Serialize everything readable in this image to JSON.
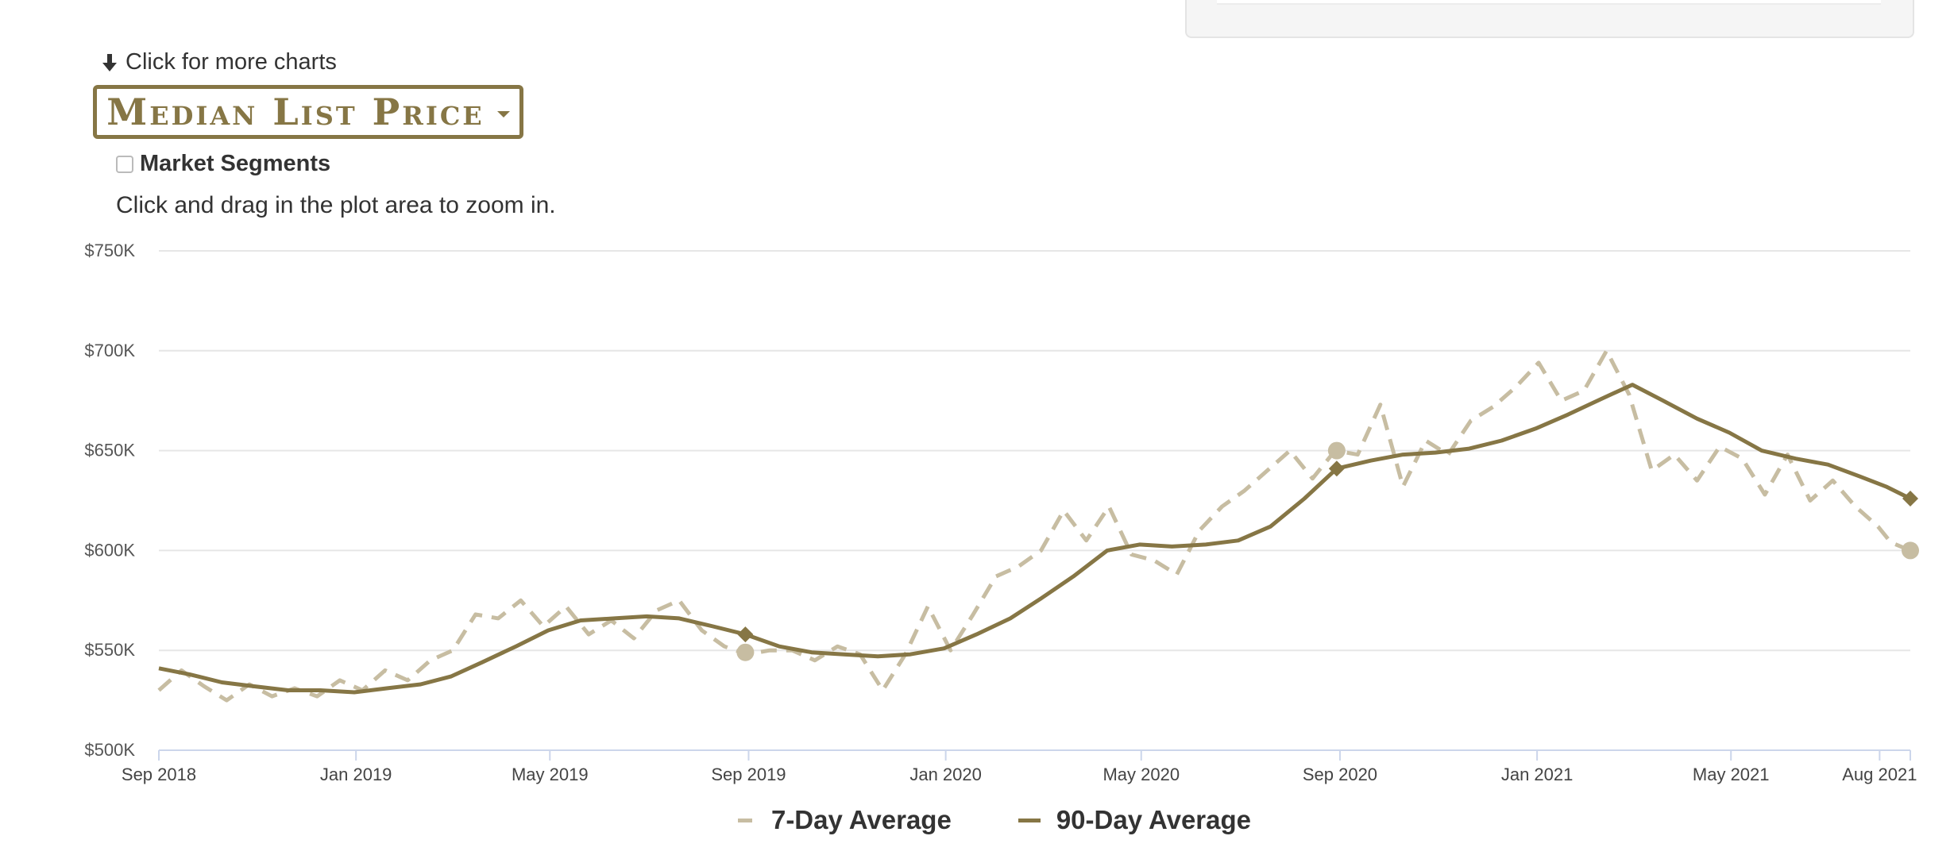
{
  "header": {
    "more_charts_label": "Click for more charts",
    "dropdown_label": "Median List Price",
    "segments_label": "Market Segments",
    "zoom_hint": "Click and drag in the plot area to zoom in."
  },
  "colors": {
    "accent": "#867645",
    "series_7day": "#c7bda2",
    "series_90day": "#867645",
    "grid": "#e6e6e6",
    "axis": "#ccd6eb",
    "text": "#333333"
  },
  "chart_data": {
    "type": "line",
    "title": "",
    "xlabel": "",
    "ylabel": "",
    "ylim": [
      500000,
      750000
    ],
    "xlim": [
      "2018-09-01",
      "2021-08-20"
    ],
    "y_ticks": [
      {
        "value": 500000,
        "label": "$500K"
      },
      {
        "value": 550000,
        "label": "$550K"
      },
      {
        "value": 600000,
        "label": "$600K"
      },
      {
        "value": 650000,
        "label": "$650K"
      },
      {
        "value": 700000,
        "label": "$700K"
      },
      {
        "value": 750000,
        "label": "$750K"
      }
    ],
    "x_ticks": [
      {
        "date": "2018-09-01",
        "label": "Sep 2018"
      },
      {
        "date": "2019-01-01",
        "label": "Jan 2019"
      },
      {
        "date": "2019-05-01",
        "label": "May 2019"
      },
      {
        "date": "2019-09-01",
        "label": "Sep 2019"
      },
      {
        "date": "2020-01-01",
        "label": "Jan 2020"
      },
      {
        "date": "2020-05-01",
        "label": "May 2020"
      },
      {
        "date": "2020-09-01",
        "label": "Sep 2020"
      },
      {
        "date": "2021-01-01",
        "label": "Jan 2021"
      },
      {
        "date": "2021-05-01",
        "label": "May 2021"
      },
      {
        "date": "2021-08-01",
        "label": "Aug 2021"
      }
    ],
    "legend_position": "bottom-center",
    "series": [
      {
        "name": "7-Day Average",
        "style": "dashed",
        "points": [
          [
            "2018-09-01",
            530000
          ],
          [
            "2018-09-15",
            540000
          ],
          [
            "2018-09-29",
            532000
          ],
          [
            "2018-10-13",
            525000
          ],
          [
            "2018-10-27",
            533000
          ],
          [
            "2018-11-10",
            527000
          ],
          [
            "2018-11-24",
            531000
          ],
          [
            "2018-12-08",
            527000
          ],
          [
            "2018-12-22",
            535000
          ],
          [
            "2019-01-05",
            530000
          ],
          [
            "2019-01-19",
            540000
          ],
          [
            "2019-02-02",
            535000
          ],
          [
            "2019-02-16",
            545000
          ],
          [
            "2019-03-02",
            550000
          ],
          [
            "2019-03-16",
            568000
          ],
          [
            "2019-03-30",
            566000
          ],
          [
            "2019-04-13",
            575000
          ],
          [
            "2019-04-27",
            562000
          ],
          [
            "2019-05-11",
            572000
          ],
          [
            "2019-05-25",
            558000
          ],
          [
            "2019-06-08",
            565000
          ],
          [
            "2019-06-22",
            556000
          ],
          [
            "2019-07-06",
            570000
          ],
          [
            "2019-07-20",
            575000
          ],
          [
            "2019-08-03",
            560000
          ],
          [
            "2019-08-17",
            552000
          ],
          [
            "2019-08-31",
            548000
          ],
          [
            "2019-09-14",
            550000
          ],
          [
            "2019-09-28",
            550000
          ],
          [
            "2019-10-12",
            545000
          ],
          [
            "2019-10-26",
            552000
          ],
          [
            "2019-11-09",
            548000
          ],
          [
            "2019-11-23",
            530000
          ],
          [
            "2019-12-07",
            548000
          ],
          [
            "2019-12-21",
            572000
          ],
          [
            "2020-01-04",
            550000
          ],
          [
            "2020-01-18",
            568000
          ],
          [
            "2020-02-01",
            587000
          ],
          [
            "2020-02-15",
            592000
          ],
          [
            "2020-02-29",
            600000
          ],
          [
            "2020-03-14",
            620000
          ],
          [
            "2020-03-28",
            605000
          ],
          [
            "2020-04-11",
            622000
          ],
          [
            "2020-04-25",
            598000
          ],
          [
            "2020-05-09",
            595000
          ],
          [
            "2020-05-23",
            588000
          ],
          [
            "2020-06-06",
            610000
          ],
          [
            "2020-06-20",
            622000
          ],
          [
            "2020-07-04",
            630000
          ],
          [
            "2020-07-18",
            640000
          ],
          [
            "2020-08-01",
            650000
          ],
          [
            "2020-08-15",
            636000
          ],
          [
            "2020-08-29",
            650000
          ],
          [
            "2020-09-12",
            648000
          ],
          [
            "2020-09-26",
            673000
          ],
          [
            "2020-10-10",
            632000
          ],
          [
            "2020-10-24",
            655000
          ],
          [
            "2020-11-07",
            648000
          ],
          [
            "2020-11-21",
            665000
          ],
          [
            "2020-12-05",
            672000
          ],
          [
            "2020-12-19",
            682000
          ],
          [
            "2021-01-02",
            694000
          ],
          [
            "2021-01-16",
            675000
          ],
          [
            "2021-01-30",
            680000
          ],
          [
            "2021-02-13",
            700000
          ],
          [
            "2021-02-27",
            678000
          ],
          [
            "2021-03-13",
            640000
          ],
          [
            "2021-03-27",
            648000
          ],
          [
            "2021-04-10",
            635000
          ],
          [
            "2021-04-24",
            652000
          ],
          [
            "2021-05-08",
            646000
          ],
          [
            "2021-05-22",
            628000
          ],
          [
            "2021-06-05",
            648000
          ],
          [
            "2021-06-19",
            625000
          ],
          [
            "2021-07-03",
            635000
          ],
          [
            "2021-07-17",
            622000
          ],
          [
            "2021-07-31",
            612000
          ],
          [
            "2021-08-08",
            604000
          ],
          [
            "2021-08-20",
            600000
          ]
        ],
        "markers": [
          [
            "2019-08-30",
            549000
          ],
          [
            "2020-08-30",
            650000
          ],
          [
            "2021-08-20",
            600000
          ]
        ]
      },
      {
        "name": "90-Day Average",
        "style": "solid",
        "points": [
          [
            "2018-09-01",
            541000
          ],
          [
            "2018-09-20",
            538000
          ],
          [
            "2018-10-10",
            534000
          ],
          [
            "2018-10-30",
            532000
          ],
          [
            "2018-11-20",
            530000
          ],
          [
            "2018-12-10",
            530000
          ],
          [
            "2018-12-31",
            529000
          ],
          [
            "2019-01-20",
            531000
          ],
          [
            "2019-02-10",
            533000
          ],
          [
            "2019-03-01",
            537000
          ],
          [
            "2019-03-20",
            544000
          ],
          [
            "2019-04-10",
            552000
          ],
          [
            "2019-04-30",
            560000
          ],
          [
            "2019-05-20",
            565000
          ],
          [
            "2019-06-10",
            566000
          ],
          [
            "2019-06-30",
            567000
          ],
          [
            "2019-07-20",
            566000
          ],
          [
            "2019-08-10",
            562000
          ],
          [
            "2019-08-30",
            558000
          ],
          [
            "2019-09-20",
            552000
          ],
          [
            "2019-10-10",
            549000
          ],
          [
            "2019-10-30",
            548000
          ],
          [
            "2019-11-20",
            547000
          ],
          [
            "2019-12-10",
            548000
          ],
          [
            "2019-12-31",
            551000
          ],
          [
            "2020-01-20",
            558000
          ],
          [
            "2020-02-10",
            566000
          ],
          [
            "2020-02-29",
            576000
          ],
          [
            "2020-03-20",
            587000
          ],
          [
            "2020-04-10",
            600000
          ],
          [
            "2020-04-30",
            603000
          ],
          [
            "2020-05-20",
            602000
          ],
          [
            "2020-06-10",
            603000
          ],
          [
            "2020-06-30",
            605000
          ],
          [
            "2020-07-20",
            612000
          ],
          [
            "2020-08-10",
            626000
          ],
          [
            "2020-08-30",
            641000
          ],
          [
            "2020-09-20",
            645000
          ],
          [
            "2020-10-10",
            648000
          ],
          [
            "2020-10-30",
            649000
          ],
          [
            "2020-11-20",
            651000
          ],
          [
            "2020-12-10",
            655000
          ],
          [
            "2020-12-31",
            661000
          ],
          [
            "2021-01-20",
            668000
          ],
          [
            "2021-02-10",
            676000
          ],
          [
            "2021-03-01",
            683000
          ],
          [
            "2021-03-20",
            675000
          ],
          [
            "2021-04-10",
            666000
          ],
          [
            "2021-04-30",
            659000
          ],
          [
            "2021-05-20",
            650000
          ],
          [
            "2021-06-10",
            646000
          ],
          [
            "2021-06-30",
            643000
          ],
          [
            "2021-07-20",
            637000
          ],
          [
            "2021-08-05",
            632000
          ],
          [
            "2021-08-20",
            626000
          ]
        ],
        "markers": [
          [
            "2019-08-30",
            558000
          ],
          [
            "2020-08-30",
            641000
          ],
          [
            "2021-08-20",
            626000
          ]
        ]
      }
    ]
  }
}
